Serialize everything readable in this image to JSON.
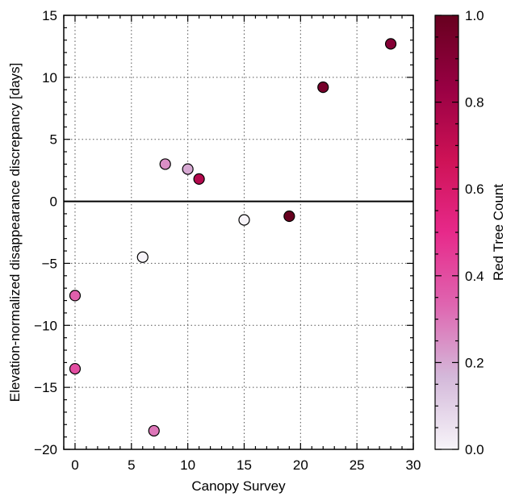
{
  "chart_data": {
    "type": "scatter",
    "title": "",
    "xlabel": "Canopy Survey",
    "ylabel": "Elevation-normalized disappearance discrepancy [days]",
    "xlim": [
      -1,
      30
    ],
    "ylim": [
      -20,
      15
    ],
    "xticks": [
      0,
      5,
      10,
      15,
      20,
      25,
      30
    ],
    "xtick_labels": [
      "0",
      "5",
      "10",
      "15",
      "20",
      "25",
      "30"
    ],
    "yticks": [
      -20,
      -15,
      -10,
      -5,
      0,
      5,
      10,
      15
    ],
    "ytick_labels": [
      "−20",
      "−15",
      "−10",
      "−5",
      "0",
      "5",
      "10",
      "15"
    ],
    "grid": true,
    "reference_line_y": 0,
    "colorbar": {
      "label": "Red Tree Count",
      "range": [
        0.0,
        1.0
      ],
      "ticks": [
        0.0,
        0.2,
        0.4,
        0.6,
        0.8,
        1.0
      ],
      "tick_labels": [
        "0.0",
        "0.2",
        "0.4",
        "0.6",
        "0.8",
        "1.0"
      ],
      "colormap_stops": [
        "#f7f4f9",
        "#d4b9da",
        "#df65b0",
        "#e7298a",
        "#ce1256",
        "#980043",
        "#67001f"
      ]
    },
    "points": [
      {
        "x": 0,
        "y": -7.6,
        "c": 0.35
      },
      {
        "x": 0,
        "y": -13.5,
        "c": 0.4
      },
      {
        "x": 6,
        "y": -4.5,
        "c": 0.0
      },
      {
        "x": 7,
        "y": -18.5,
        "c": 0.3
      },
      {
        "x": 8,
        "y": 3.0,
        "c": 0.25
      },
      {
        "x": 10,
        "y": 2.6,
        "c": 0.2
      },
      {
        "x": 11,
        "y": 1.8,
        "c": 0.75
      },
      {
        "x": 15,
        "y": -1.5,
        "c": 0.0
      },
      {
        "x": 19,
        "y": -1.2,
        "c": 1.0
      },
      {
        "x": 22,
        "y": 9.2,
        "c": 0.95
      },
      {
        "x": 28,
        "y": 12.7,
        "c": 0.9
      }
    ]
  }
}
